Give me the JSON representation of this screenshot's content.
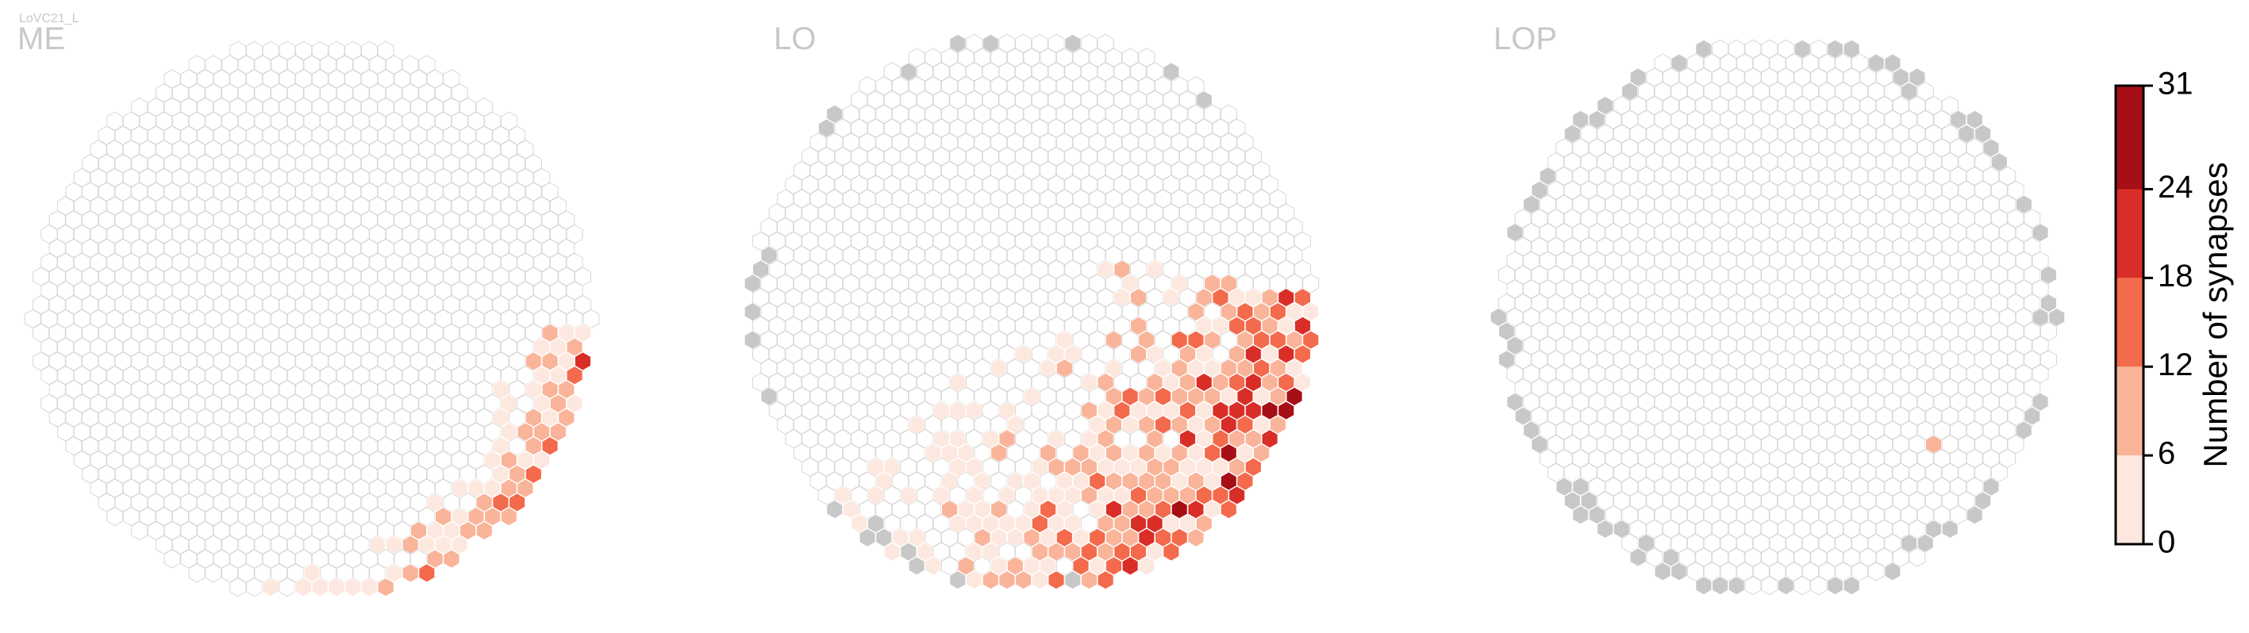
{
  "figure_label": "LoVC21_L",
  "panels": [
    {
      "title": "ME"
    },
    {
      "title": "LO"
    },
    {
      "title": "LOP"
    }
  ],
  "colorbar": {
    "label": "Number of synapses",
    "ticks": [
      "0",
      "6",
      "12",
      "18",
      "24",
      "31"
    ]
  },
  "colors": {
    "empty_outline": "#d7d7d7",
    "no_data_gray": "#c8c8c8",
    "bins": [
      "#fde8df",
      "#f9b49a",
      "#f46a4c",
      "#d92e27",
      "#a50f15"
    ],
    "title_gray": "#c8c8c8",
    "text": "#000000"
  },
  "chart_data": {
    "type": "heatmap",
    "title": "LoVC21_L",
    "value_label": "Number of synapses",
    "value_range": [
      0,
      31
    ],
    "bin_edges": [
      0,
      6,
      12,
      18,
      24,
      31
    ],
    "panels": [
      {
        "name": "ME",
        "bin_counts": [
          40,
          30,
          6,
          1,
          0
        ],
        "no_data_cells": 0,
        "extent": "lower-right edge of the eye"
      },
      {
        "name": "LO",
        "bin_counts": [
          130,
          90,
          45,
          20,
          6
        ],
        "no_data_cells": 22,
        "extent": "lower-right half of the eye"
      },
      {
        "name": "LOP",
        "bin_counts": [
          0,
          1,
          0,
          0,
          0
        ],
        "no_data_cells": 70,
        "extent": "none (gray cells along the rim)"
      }
    ]
  }
}
